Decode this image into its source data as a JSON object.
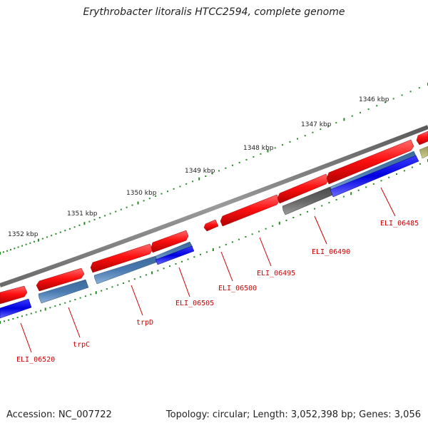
{
  "title": "Erythrobacter litoralis HTCC2594, complete genome",
  "footer": {
    "accession": "Accession: NC_007722",
    "topology": "Topology: circular; Length: 3,052,398 bp; Genes: 3,056"
  },
  "colors": {
    "backbone": "#7a7a7a",
    "forward_cds": "#e00000",
    "reverse_cds": "#0000dd",
    "reverse_cds_light": "#4a7ab0",
    "other_grey": "#666666",
    "other_olive": "#b0ae6a",
    "ticks": "#228b22",
    "gene_label": "#cc0000"
  },
  "ruler": {
    "unit": "kbp",
    "labels": [
      "1346 kbp",
      "1347 kbp",
      "1348 kbp",
      "1349 kbp",
      "1350 kbp",
      "1351 kbp",
      "1352 kbp"
    ]
  },
  "genes": [
    {
      "label": "ELI_06485"
    },
    {
      "label": "ELI_06490"
    },
    {
      "label": "ELI_06495"
    },
    {
      "label": "ELI_06500"
    },
    {
      "label": "ELI_06505"
    },
    {
      "label": "trpD"
    },
    {
      "label": "trpC"
    },
    {
      "label": "ELI_06520"
    }
  ]
}
